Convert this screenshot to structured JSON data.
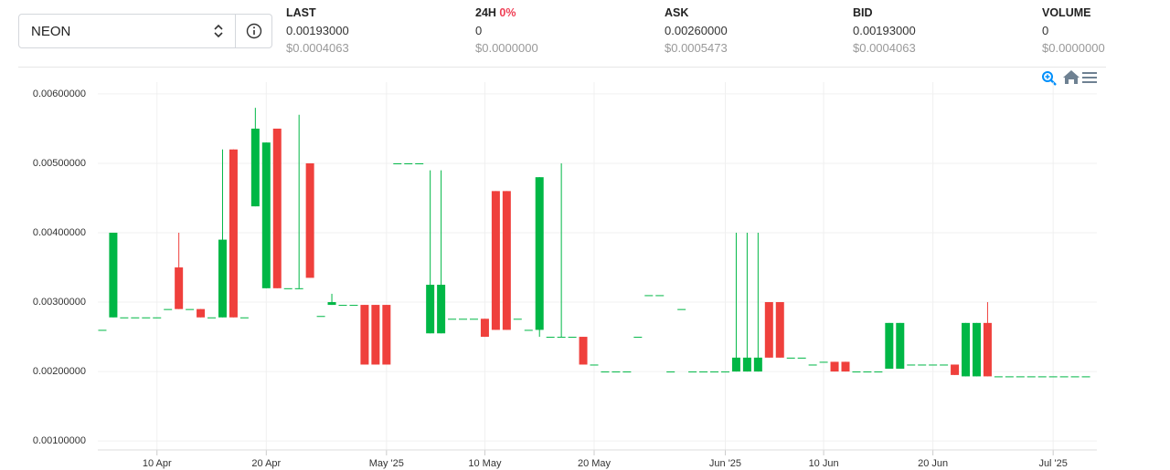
{
  "header": {
    "selector": "NEON",
    "stats": [
      {
        "label": "LAST",
        "value": "0.00193000",
        "usd": "$0.0004063"
      },
      {
        "label": "24H",
        "change": "0%",
        "value": "0",
        "usd": "$0.0000000"
      },
      {
        "label": "ASK",
        "value": "0.00260000",
        "usd": "$0.0005473"
      },
      {
        "label": "BID",
        "value": "0.00193000",
        "usd": "$0.0004063"
      },
      {
        "label": "VOLUME",
        "value": "0",
        "usd": "$0.0000000"
      }
    ]
  },
  "chart_data": {
    "type": "candlestick",
    "up_color": "#00b746",
    "down_color": "#ef403c",
    "grid": true,
    "x": [
      "2025-04-05",
      "2025-04-06",
      "2025-04-07",
      "2025-04-08",
      "2025-04-09",
      "2025-04-10",
      "2025-04-11",
      "2025-04-12",
      "2025-04-13",
      "2025-04-14",
      "2025-04-15",
      "2025-04-16",
      "2025-04-17",
      "2025-04-18",
      "2025-04-19",
      "2025-04-20",
      "2025-04-21",
      "2025-04-22",
      "2025-04-23",
      "2025-04-24",
      "2025-04-25",
      "2025-04-26",
      "2025-04-27",
      "2025-04-28",
      "2025-04-29",
      "2025-04-30",
      "2025-05-01",
      "2025-05-02",
      "2025-05-03",
      "2025-05-04",
      "2025-05-05",
      "2025-05-06",
      "2025-05-07",
      "2025-05-08",
      "2025-05-09",
      "2025-05-10",
      "2025-05-11",
      "2025-05-12",
      "2025-05-13",
      "2025-05-14",
      "2025-05-15",
      "2025-05-16",
      "2025-05-17",
      "2025-05-18",
      "2025-05-19",
      "2025-05-20",
      "2025-05-21",
      "2025-05-22",
      "2025-05-23",
      "2025-05-24",
      "2025-05-25",
      "2025-05-26",
      "2025-05-27",
      "2025-05-28",
      "2025-05-29",
      "2025-05-30",
      "2025-05-31",
      "2025-06-01",
      "2025-06-02",
      "2025-06-03",
      "2025-06-04",
      "2025-06-05",
      "2025-06-06",
      "2025-06-07",
      "2025-06-08",
      "2025-06-09",
      "2025-06-10",
      "2025-06-11",
      "2025-06-12",
      "2025-06-13",
      "2025-06-14",
      "2025-06-15",
      "2025-06-16",
      "2025-06-17",
      "2025-06-18",
      "2025-06-19",
      "2025-06-20",
      "2025-06-21",
      "2025-06-22",
      "2025-06-23",
      "2025-06-24",
      "2025-06-25",
      "2025-06-26",
      "2025-06-27",
      "2025-06-28",
      "2025-06-29",
      "2025-06-30",
      "2025-07-01",
      "2025-07-02",
      "2025-07-03",
      "2025-07-04"
    ],
    "open": [
      0.0026,
      0.00278,
      0.00278,
      0.00278,
      0.00278,
      0.00278,
      0.0029,
      0.0035,
      0.0029,
      0.0029,
      0.00278,
      0.00278,
      0.0052,
      0.00278,
      0.00438,
      0.0032,
      0.0055,
      0.0032,
      0.0032,
      0.005,
      0.0028,
      0.00296,
      0.00296,
      0.00296,
      0.00296,
      0.00296,
      0.00296,
      0.005,
      0.005,
      0.005,
      0.00255,
      0.00255,
      0.00276,
      0.00276,
      0.00276,
      0.00276,
      0.0046,
      0.0046,
      0.00276,
      0.0026,
      0.0026,
      0.0025,
      0.0025,
      0.0025,
      0.0025,
      0.0021,
      0.002,
      0.002,
      0.002,
      0.0025,
      0.0031,
      0.0031,
      0.002,
      0.0029,
      0.002,
      0.002,
      0.002,
      0.002,
      0.002,
      0.002,
      0.002,
      0.003,
      0.003,
      0.0022,
      0.0022,
      0.0021,
      0.00214,
      0.00214,
      0.00214,
      0.002,
      0.002,
      0.002,
      0.00204,
      0.00204,
      0.0021,
      0.0021,
      0.0021,
      0.0021,
      0.0021,
      0.00193,
      0.00193,
      0.0027,
      0.00193,
      0.00193,
      0.00193,
      0.00193,
      0.00193,
      0.00193,
      0.00193,
      0.00193,
      0.00193
    ],
    "high": [
      0.0026,
      0.004,
      0.00278,
      0.00278,
      0.00278,
      0.00278,
      0.0029,
      0.004,
      0.0029,
      0.0029,
      0.00278,
      0.0052,
      0.0052,
      0.00278,
      0.0058,
      0.0053,
      0.0055,
      0.0032,
      0.0057,
      0.005,
      0.0028,
      0.00312,
      0.00296,
      0.00296,
      0.00296,
      0.00296,
      0.00296,
      0.005,
      0.005,
      0.005,
      0.0049,
      0.0049,
      0.00276,
      0.00276,
      0.00276,
      0.00276,
      0.0046,
      0.0046,
      0.00276,
      0.0026,
      0.0048,
      0.0025,
      0.005,
      0.0025,
      0.0025,
      0.0021,
      0.002,
      0.002,
      0.002,
      0.0025,
      0.0031,
      0.0031,
      0.002,
      0.0029,
      0.002,
      0.002,
      0.002,
      0.002,
      0.004,
      0.004,
      0.004,
      0.003,
      0.003,
      0.0022,
      0.0022,
      0.0021,
      0.00214,
      0.00214,
      0.00214,
      0.002,
      0.002,
      0.002,
      0.0027,
      0.0027,
      0.0021,
      0.0021,
      0.0021,
      0.0021,
      0.0021,
      0.0027,
      0.0027,
      0.003,
      0.00193,
      0.00193,
      0.00193,
      0.00193,
      0.00193,
      0.00193,
      0.00193,
      0.00193,
      0.00193
    ],
    "low": [
      0.0026,
      0.00278,
      0.00278,
      0.00278,
      0.00278,
      0.00278,
      0.0029,
      0.0029,
      0.0029,
      0.00278,
      0.00278,
      0.00278,
      0.00278,
      0.00278,
      0.00438,
      0.0032,
      0.0032,
      0.0032,
      0.0032,
      0.00335,
      0.0028,
      0.00296,
      0.00296,
      0.00296,
      0.0021,
      0.0021,
      0.0021,
      0.005,
      0.005,
      0.005,
      0.00255,
      0.00255,
      0.00276,
      0.00276,
      0.00276,
      0.0025,
      0.0026,
      0.0026,
      0.00276,
      0.0026,
      0.0025,
      0.0025,
      0.0025,
      0.0025,
      0.0021,
      0.0021,
      0.002,
      0.002,
      0.002,
      0.0025,
      0.0031,
      0.0031,
      0.002,
      0.0029,
      0.002,
      0.002,
      0.002,
      0.002,
      0.002,
      0.002,
      0.002,
      0.0022,
      0.0022,
      0.0022,
      0.0022,
      0.0021,
      0.00214,
      0.002,
      0.002,
      0.002,
      0.002,
      0.002,
      0.00204,
      0.00204,
      0.0021,
      0.0021,
      0.0021,
      0.0021,
      0.00195,
      0.00193,
      0.00193,
      0.00193,
      0.00193,
      0.00193,
      0.00193,
      0.00193,
      0.00193,
      0.00193,
      0.00193,
      0.00193,
      0.00193
    ],
    "close": [
      0.0026,
      0.004,
      0.00278,
      0.00278,
      0.00278,
      0.00278,
      0.0029,
      0.0029,
      0.0029,
      0.00278,
      0.00278,
      0.0039,
      0.00278,
      0.00278,
      0.0055,
      0.0053,
      0.0032,
      0.0032,
      0.0032,
      0.00335,
      0.0028,
      0.003,
      0.00296,
      0.00296,
      0.0021,
      0.0021,
      0.0021,
      0.005,
      0.005,
      0.005,
      0.00325,
      0.00325,
      0.00276,
      0.00276,
      0.00276,
      0.0025,
      0.0026,
      0.0026,
      0.00276,
      0.0026,
      0.0048,
      0.0025,
      0.0025,
      0.0025,
      0.0021,
      0.0021,
      0.002,
      0.002,
      0.002,
      0.0025,
      0.0031,
      0.0031,
      0.002,
      0.0029,
      0.002,
      0.002,
      0.002,
      0.002,
      0.0022,
      0.0022,
      0.0022,
      0.0022,
      0.0022,
      0.0022,
      0.0022,
      0.0021,
      0.00214,
      0.002,
      0.002,
      0.002,
      0.002,
      0.002,
      0.0027,
      0.0027,
      0.0021,
      0.0021,
      0.0021,
      0.0021,
      0.00195,
      0.0027,
      0.0027,
      0.00193,
      0.00193,
      0.00193,
      0.00193,
      0.00193,
      0.00193,
      0.00193,
      0.00193,
      0.00193,
      0.00193
    ],
    "xlim": [
      "2025-04-04",
      "2025-07-05"
    ],
    "xticks": [
      {
        "value": "2025-04-10",
        "label": "10 Apr"
      },
      {
        "value": "2025-04-20",
        "label": "20 Apr"
      },
      {
        "value": "2025-05-01",
        "label": "May '25"
      },
      {
        "value": "2025-05-10",
        "label": "10 May"
      },
      {
        "value": "2025-05-20",
        "label": "20 May"
      },
      {
        "value": "2025-06-01",
        "label": "Jun '25"
      },
      {
        "value": "2025-06-10",
        "label": "10 Jun"
      },
      {
        "value": "2025-06-20",
        "label": "20 Jun"
      },
      {
        "value": "2025-07-01",
        "label": "Jul '25"
      }
    ],
    "ylim": [
      0.00087,
      0.00617
    ],
    "yticks": [
      {
        "value": 0.001,
        "label": "0.00100000"
      },
      {
        "value": 0.002,
        "label": "0.00200000"
      },
      {
        "value": 0.003,
        "label": "0.00300000"
      },
      {
        "value": 0.004,
        "label": "0.00400000"
      },
      {
        "value": 0.005,
        "label": "0.00500000"
      },
      {
        "value": 0.006,
        "label": "0.00600000"
      }
    ]
  }
}
